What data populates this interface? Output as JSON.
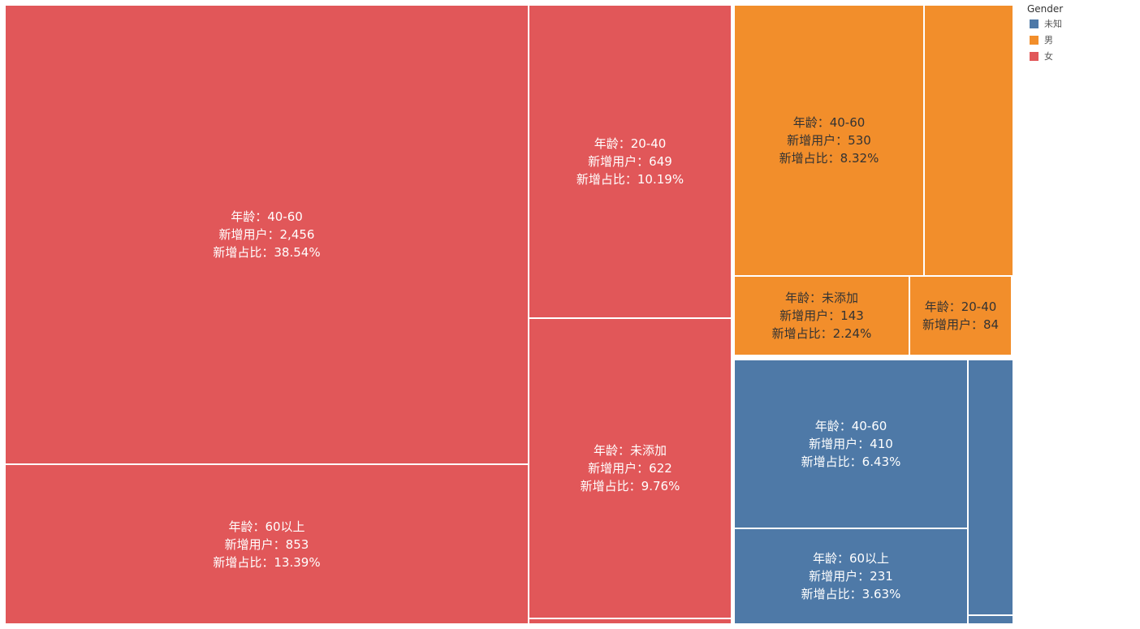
{
  "chart_data": {
    "type": "treemap",
    "legend": {
      "title": "Gender",
      "placement": "top-right",
      "items": [
        {
          "label": "未知",
          "color": "#4e79a7"
        },
        {
          "label": "男",
          "color": "#f28e2b"
        },
        {
          "label": "女",
          "color": "#e15759"
        }
      ]
    },
    "cells": [
      {
        "group": "女",
        "lines": [
          "年龄：40-60",
          "新增用户：2,456",
          "新增占比：38.54%"
        ],
        "value": 2456,
        "share": 38.54
      },
      {
        "group": "女",
        "lines": [
          "年龄：60以上",
          "新增用户：853",
          "新增占比：13.39%"
        ],
        "value": 853,
        "share": 13.39
      },
      {
        "group": "女",
        "lines": [
          "年龄：20-40",
          "新增用户：649",
          "新增占比：10.19%"
        ],
        "value": 649,
        "share": 10.19
      },
      {
        "group": "女",
        "lines": [
          "年龄：未添加",
          "新增用户：622",
          "新增占比：9.76%"
        ],
        "value": 622,
        "share": 9.76
      },
      {
        "group": "女",
        "lines": [],
        "value": null,
        "share": null
      },
      {
        "group": "男",
        "lines": [
          "年龄：40-60",
          "新增用户：530",
          "新增占比：8.32%"
        ],
        "value": 530,
        "share": 8.32
      },
      {
        "group": "男",
        "lines": [],
        "value": null,
        "share": null
      },
      {
        "group": "男",
        "lines": [
          "年龄：未添加",
          "新增用户：143",
          "新增占比：2.24%"
        ],
        "value": 143,
        "share": 2.24
      },
      {
        "group": "男",
        "lines": [
          "年龄：20-40",
          "新增用户：84"
        ],
        "value": 84,
        "share": null
      },
      {
        "group": "男",
        "lines": [],
        "value": null,
        "share": null
      },
      {
        "group": "未知",
        "lines": [
          "年龄：40-60",
          "新增用户：410",
          "新增占比：6.43%"
        ],
        "value": 410,
        "share": 6.43
      },
      {
        "group": "未知",
        "lines": [
          "年龄：60以上",
          "新增用户：231",
          "新增占比：3.63%"
        ],
        "value": 231,
        "share": 3.63
      },
      {
        "group": "未知",
        "lines": [],
        "value": null,
        "share": null
      },
      {
        "group": "未知",
        "lines": [],
        "value": null,
        "share": null
      }
    ]
  }
}
